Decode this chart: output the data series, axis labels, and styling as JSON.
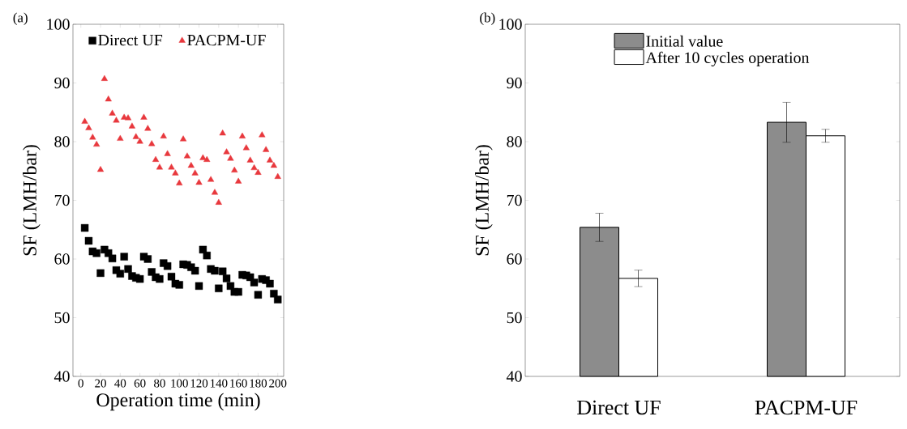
{
  "chart_data": [
    {
      "type": "scatter",
      "xlabel": "Operation time (min)",
      "ylabel": "SF (LMH/bar)",
      "annotations": [
        "(a)"
      ],
      "x": [
        4,
        8,
        12,
        16,
        20,
        24,
        28,
        32,
        36,
        40,
        44,
        48,
        52,
        56,
        60,
        64,
        68,
        72,
        76,
        80,
        84,
        88,
        92,
        96,
        100,
        104,
        108,
        112,
        116,
        120,
        124,
        128,
        132,
        136,
        140,
        144,
        148,
        152,
        156,
        160,
        164,
        168,
        172,
        176,
        180,
        184,
        188,
        192,
        196,
        200
      ],
      "series": [
        {
          "name": "Direct UF",
          "color": "#000000",
          "marker": "square",
          "values": [
            65.3,
            63.1,
            61.3,
            61.0,
            57.6,
            61.6,
            61.0,
            60.1,
            58.1,
            57.5,
            60.4,
            58.3,
            57.1,
            56.8,
            56.6,
            60.4,
            60.0,
            57.8,
            56.9,
            56.6,
            59.3,
            58.8,
            57.0,
            55.8,
            55.6,
            59.1,
            59.0,
            58.6,
            58.0,
            55.4,
            61.6,
            60.6,
            58.3,
            58.0,
            55.0,
            57.9,
            56.7,
            55.4,
            54.4,
            54.4,
            57.3,
            57.2,
            56.9,
            56.0,
            53.9,
            56.6,
            56.4,
            55.8,
            54.1,
            53.1
          ]
        },
        {
          "name": "PACPM-UF",
          "color": "#e8383d",
          "marker": "triangle",
          "values": [
            83.4,
            82.3,
            80.7,
            79.5,
            75.2,
            90.7,
            87.2,
            84.8,
            83.6,
            80.5,
            84.1,
            84.0,
            82.6,
            80.8,
            80.0,
            84.1,
            82.2,
            79.6,
            76.9,
            75.6,
            80.9,
            77.9,
            75.6,
            74.6,
            72.9,
            80.4,
            77.5,
            75.9,
            74.6,
            73.0,
            77.2,
            76.9,
            73.5,
            71.3,
            69.6,
            81.4,
            78.2,
            77.1,
            75.1,
            73.2,
            80.9,
            78.9,
            76.8,
            75.5,
            74.7,
            81.1,
            78.6,
            76.8,
            75.9,
            74.0
          ]
        }
      ],
      "xlim": [
        -8,
        206
      ],
      "xticks": [
        0,
        20,
        40,
        60,
        80,
        100,
        120,
        140,
        160,
        180,
        200
      ],
      "ylim": [
        40,
        100
      ],
      "yticks": [
        40,
        50,
        60,
        70,
        80,
        90,
        100
      ],
      "legend": "top",
      "grid": false
    },
    {
      "type": "bar",
      "ylabel": "SF (LMH/bar)",
      "annotations": [
        "(b)"
      ],
      "categories": [
        "Direct UF",
        "PACPM-UF"
      ],
      "series": [
        {
          "name": "Initial value",
          "color": "#8c8c8c",
          "values": [
            65.4,
            83.3
          ],
          "errors": [
            2.4,
            3.4
          ]
        },
        {
          "name": "After 10 cycles operation",
          "color": "#ffffff",
          "values": [
            56.7,
            81.0
          ],
          "errors": [
            1.4,
            1.1
          ]
        }
      ],
      "ylim": [
        40,
        100
      ],
      "yticks": [
        40,
        50,
        60,
        70,
        80,
        90,
        100
      ],
      "legend": "top",
      "grid": false
    }
  ]
}
